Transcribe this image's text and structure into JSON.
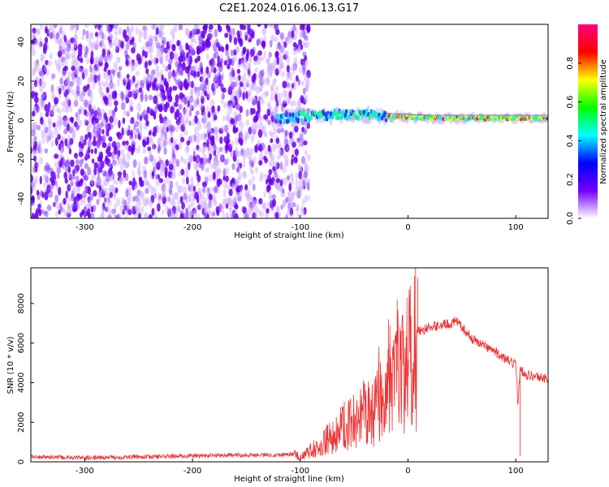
{
  "figure": {
    "title": "C2E1.2024.016.06.13.G17"
  },
  "chart_data": [
    {
      "type": "heatmap",
      "title": "",
      "xlabel": "Height of straight line (km)",
      "ylabel": "Frequency (Hz)",
      "xlim": [
        -350,
        130
      ],
      "ylim": [
        -50,
        49
      ],
      "x_ticks": [
        "-300",
        "-200",
        "-100",
        "0",
        "100"
      ],
      "y_ticks": [
        "40",
        "20",
        "0",
        "-20",
        "-40"
      ],
      "colorbar": {
        "label": "Normalized spectral amplitude",
        "range": [
          0,
          1
        ],
        "ticks": [
          "0.0",
          "0.2",
          "0.4",
          "0.6",
          "0.8"
        ],
        "colors": [
          "#ffffff",
          "#7000ff",
          "#0000ff",
          "#00ffff",
          "#00ff00",
          "#ffff00",
          "#ff0000",
          "#ff0080"
        ]
      },
      "signal_track": {
        "x": [
          -120,
          -100,
          -80,
          -60,
          -40,
          -20,
          0,
          20,
          40,
          60,
          80,
          100,
          120,
          130
        ],
        "frequency": [
          1,
          2,
          2.5,
          3,
          3,
          2,
          1.5,
          1,
          1,
          1,
          1,
          1,
          1,
          1
        ]
      },
      "noise_region": {
        "x_start": -350,
        "x_end": -100,
        "frequency_range": [
          -50,
          49
        ]
      }
    },
    {
      "type": "line",
      "title": "",
      "xlabel": "Height of straight line (km)",
      "ylabel": "SNR (10 * v/v)",
      "xlim": [
        -350,
        130
      ],
      "ylim": [
        0,
        9800
      ],
      "x_ticks": [
        "-300",
        "-200",
        "-100",
        "0",
        "100"
      ],
      "y_ticks": [
        "0",
        "2000",
        "4000",
        "6000",
        "8000"
      ],
      "color": "#ee3333",
      "series": [
        {
          "x": [
            -350,
            -300,
            -250,
            -200,
            -150,
            -120,
            -105,
            -100,
            -90,
            -80,
            -70,
            -60,
            -50,
            -40,
            -30,
            -20,
            -10,
            0,
            5,
            10,
            20,
            30,
            40,
            45,
            50,
            60,
            70,
            80,
            90,
            100,
            102,
            104,
            106,
            110,
            120,
            130
          ],
          "y": [
            250,
            200,
            250,
            300,
            350,
            350,
            400,
            300,
            600,
            1000,
            1500,
            2000,
            2400,
            2800,
            3300,
            4000,
            4600,
            5800,
            6300,
            6600,
            6800,
            6900,
            7000,
            7100,
            6800,
            6200,
            5900,
            5600,
            5200,
            4900,
            3000,
            4800,
            4600,
            4400,
            4300,
            4200
          ]
        }
      ],
      "spikes": [
        {
          "x": -18,
          "y": 7200
        },
        {
          "x": -10,
          "y": 8200
        },
        {
          "x": -1,
          "y": 8300
        },
        {
          "x": 7,
          "y": 9800
        },
        {
          "x": 9,
          "y": 9300
        },
        {
          "x": 104,
          "y": 300
        }
      ]
    }
  ]
}
